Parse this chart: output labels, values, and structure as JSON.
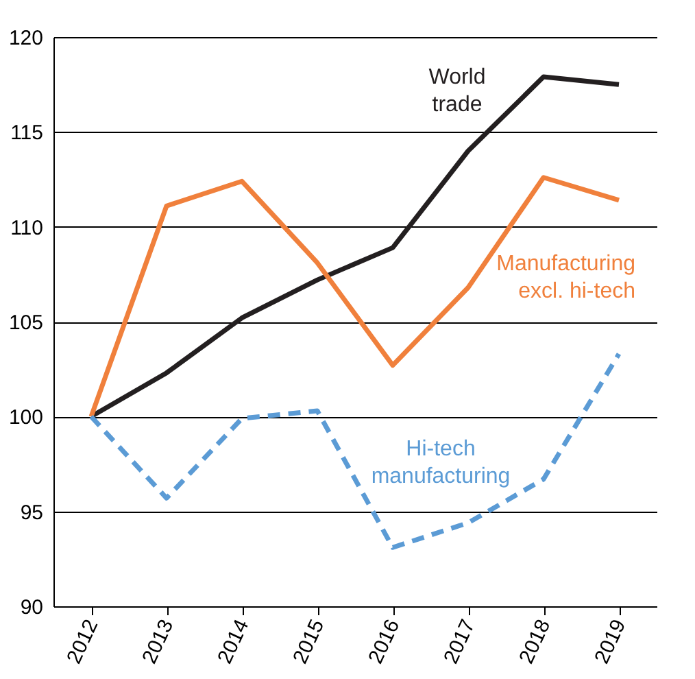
{
  "chart_data": {
    "type": "line",
    "categories": [
      "2012",
      "2013",
      "2014",
      "2015",
      "2016",
      "2017",
      "2018",
      "2019"
    ],
    "ylim": [
      90,
      120
    ],
    "yticks": [
      90,
      95,
      100,
      105,
      110,
      115,
      120
    ],
    "grid": "y",
    "series": [
      {
        "name": "World trade",
        "color": "#231f20",
        "line_style": "solid",
        "values": [
          100,
          102.3,
          105.2,
          107.2,
          108.9,
          114.0,
          117.9,
          117.5
        ]
      },
      {
        "name": "Manufacturing excl. hi-tech",
        "color": "#f0803c",
        "line_style": "solid",
        "values": [
          100,
          111.1,
          112.4,
          108.1,
          102.7,
          106.8,
          112.6,
          111.4
        ]
      },
      {
        "name": "Hi-tech manufacturing",
        "color": "#5b9bd5",
        "line_style": "dashed",
        "values": [
          100,
          95.7,
          99.9,
          100.3,
          93.1,
          94.4,
          96.7,
          103.3
        ]
      }
    ]
  }
}
